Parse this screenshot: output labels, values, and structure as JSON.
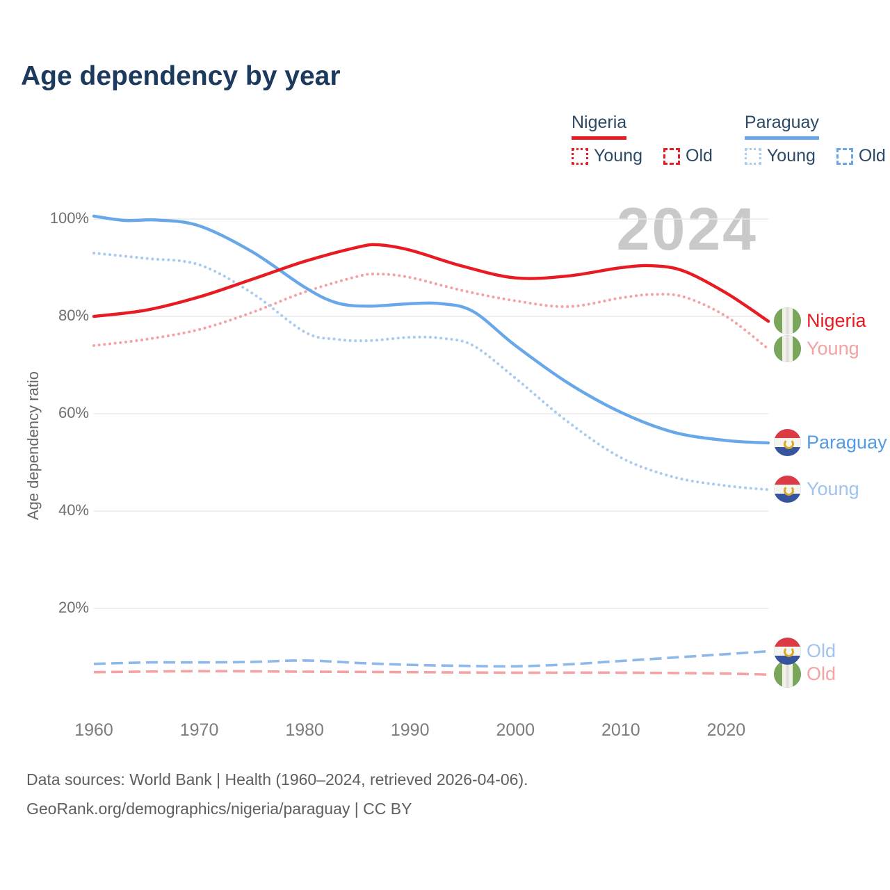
{
  "title": "Age dependency by year",
  "watermark": "2024",
  "legend": {
    "groups": [
      {
        "id": "nigeria",
        "label": "Nigeria",
        "underline_color": "#e81b22",
        "items": [
          {
            "label": "Young",
            "style": "dotted",
            "color": "#e81b22"
          },
          {
            "label": "Old",
            "style": "dashed",
            "color": "#e81b22"
          }
        ]
      },
      {
        "id": "paraguay",
        "label": "Paraguay",
        "underline_color": "#68a7e8",
        "items": [
          {
            "label": "Young",
            "style": "dotted",
            "color": "#a9cbf0"
          },
          {
            "label": "Old",
            "style": "dashed",
            "color": "#68a7e8"
          }
        ]
      }
    ]
  },
  "colors": {
    "nigeria_red": "#e81b22",
    "nigeria_pink": "#f5a2a4",
    "paraguay_blue": "#68a7e8",
    "paraguay_light_blue": "#a9cbf0",
    "paraguay_dashed_blue": "#8db8ea",
    "grid": "#e8e8e8",
    "title_navy": "#1c3a5e",
    "watermark_gray": "#c9c9c9"
  },
  "chart_data": {
    "type": "line",
    "title": "Age dependency by year",
    "xlabel": "",
    "ylabel": "Age dependency ratio",
    "xlim": [
      1960,
      2024
    ],
    "ylim": [
      0,
      105
    ],
    "grid": "horizontal",
    "legend_position": "top-right",
    "x_ticks": [
      1960,
      1970,
      1980,
      1990,
      2000,
      2010,
      2020
    ],
    "y_ticks": [
      {
        "value": 100,
        "label": "100%"
      },
      {
        "value": 80,
        "label": "80%"
      },
      {
        "value": 60,
        "label": "60%"
      },
      {
        "value": 40,
        "label": "40%"
      },
      {
        "value": 20,
        "label": "20%"
      }
    ],
    "series": [
      {
        "name": "Nigeria Young",
        "end_label": "Young",
        "flag": "NG",
        "style": "dotted",
        "color": "#f5a2a4",
        "label_color": "#f5a2a4",
        "points": [
          [
            1960,
            74.0
          ],
          [
            1965,
            75.3
          ],
          [
            1970,
            77.3
          ],
          [
            1975,
            80.8
          ],
          [
            1980,
            85.0
          ],
          [
            1985,
            88.2
          ],
          [
            1987,
            88.7
          ],
          [
            1990,
            88.0
          ],
          [
            1995,
            85.3
          ],
          [
            2000,
            83.2
          ],
          [
            2005,
            82.0
          ],
          [
            2010,
            83.8
          ],
          [
            2013,
            84.5
          ],
          [
            2016,
            84.0
          ],
          [
            2020,
            80.0
          ],
          [
            2024,
            73.3
          ]
        ]
      },
      {
        "name": "Paraguay Young",
        "end_label": "Young",
        "flag": "PY",
        "style": "dotted",
        "color": "#a9cbf0",
        "label_color": "#a0c4ee",
        "points": [
          [
            1960,
            93.0
          ],
          [
            1965,
            91.9
          ],
          [
            1970,
            90.6
          ],
          [
            1975,
            84.8
          ],
          [
            1980,
            76.8
          ],
          [
            1983,
            75.3
          ],
          [
            1986,
            75.0
          ],
          [
            1990,
            75.7
          ],
          [
            1993,
            75.5
          ],
          [
            1996,
            74.0
          ],
          [
            2000,
            67.3
          ],
          [
            2005,
            58.3
          ],
          [
            2010,
            51.0
          ],
          [
            2015,
            47.0
          ],
          [
            2020,
            45.2
          ],
          [
            2024,
            44.4
          ]
        ]
      },
      {
        "name": "Nigeria Old",
        "end_label": "Old",
        "flag": "NG",
        "style": "dashed",
        "color": "#f5a2a4",
        "label_color": "#f5a2a4",
        "points": [
          [
            1960,
            6.9
          ],
          [
            1970,
            7.1
          ],
          [
            1980,
            7.0
          ],
          [
            1990,
            6.9
          ],
          [
            2000,
            6.8
          ],
          [
            2010,
            6.8
          ],
          [
            2020,
            6.6
          ],
          [
            2024,
            6.4
          ]
        ]
      },
      {
        "name": "Paraguay Old",
        "end_label": "Old",
        "flag": "PY",
        "style": "dashed",
        "color": "#8db8ea",
        "label_color": "#a0c4ee",
        "points": [
          [
            1960,
            8.6
          ],
          [
            1965,
            8.9
          ],
          [
            1970,
            8.9
          ],
          [
            1975,
            9.0
          ],
          [
            1980,
            9.3
          ],
          [
            1985,
            8.8
          ],
          [
            1990,
            8.4
          ],
          [
            1995,
            8.2
          ],
          [
            2000,
            8.1
          ],
          [
            2005,
            8.5
          ],
          [
            2010,
            9.2
          ],
          [
            2015,
            9.9
          ],
          [
            2020,
            10.6
          ],
          [
            2024,
            11.2
          ]
        ]
      },
      {
        "name": "Paraguay",
        "end_label": "Paraguay",
        "flag": "PY",
        "style": "solid",
        "color": "#68a7e8",
        "label_color": "#539be4",
        "points": [
          [
            1960,
            100.6
          ],
          [
            1963,
            99.7
          ],
          [
            1966,
            99.8
          ],
          [
            1970,
            98.6
          ],
          [
            1975,
            93.3
          ],
          [
            1980,
            86.0
          ],
          [
            1983,
            82.8
          ],
          [
            1986,
            82.1
          ],
          [
            1990,
            82.6
          ],
          [
            1993,
            82.6
          ],
          [
            1996,
            81.0
          ],
          [
            2000,
            74.0
          ],
          [
            2005,
            66.3
          ],
          [
            2010,
            60.3
          ],
          [
            2015,
            56.2
          ],
          [
            2020,
            54.5
          ],
          [
            2024,
            54.0
          ]
        ]
      },
      {
        "name": "Nigeria",
        "end_label": "Nigeria",
        "flag": "NG",
        "style": "solid",
        "color": "#e81b22",
        "label_color": "#e81b22",
        "points": [
          [
            1960,
            80.0
          ],
          [
            1965,
            81.3
          ],
          [
            1970,
            84.0
          ],
          [
            1975,
            87.6
          ],
          [
            1980,
            91.3
          ],
          [
            1985,
            94.2
          ],
          [
            1987,
            94.7
          ],
          [
            1990,
            93.6
          ],
          [
            1995,
            90.3
          ],
          [
            2000,
            87.9
          ],
          [
            2005,
            88.3
          ],
          [
            2010,
            90.0
          ],
          [
            2013,
            90.4
          ],
          [
            2016,
            89.3
          ],
          [
            2020,
            84.8
          ],
          [
            2024,
            79.0
          ]
        ]
      }
    ]
  },
  "footer": {
    "line1": "Data sources: World Bank | Health (1960–2024, retrieved 2026-04-06).",
    "line2": "GeoRank.org/demographics/nigeria/paraguay | CC BY"
  }
}
